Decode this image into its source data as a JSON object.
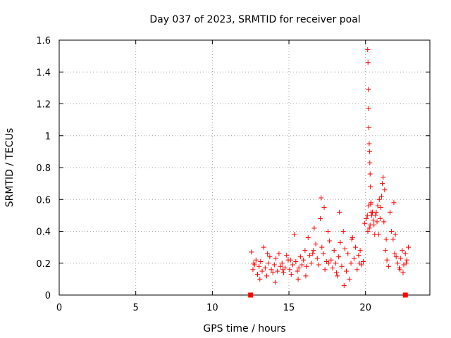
{
  "chart_data": {
    "type": "scatter",
    "title": "Day 037 of 2023, SRMTID for receiver poal",
    "xlabel": "GPS time / hours",
    "ylabel": "SRMTID / TECUs",
    "xlim": [
      0,
      24.2
    ],
    "ylim": [
      0,
      1.6
    ],
    "xticks": [
      0,
      5,
      10,
      15,
      20
    ],
    "xtick_labels": [
      "0",
      "5",
      "10",
      "15",
      "20"
    ],
    "yticks": [
      0,
      0.2,
      0.4,
      0.6,
      0.8,
      1.0,
      1.2,
      1.4,
      1.6
    ],
    "ytick_labels": [
      "0",
      "0.2",
      "0.4",
      "0.6",
      "0.8",
      "1",
      "1.2",
      "1.4",
      "1.6"
    ],
    "grid": true,
    "marker": "+",
    "color": "#ff0000",
    "series": [
      {
        "name": "SRMTID",
        "x": [
          12.55,
          12.65,
          12.75,
          12.85,
          12.95,
          13.05,
          13.15,
          13.25,
          13.35,
          13.45,
          13.55,
          13.65,
          13.75,
          13.85,
          13.95,
          14.05,
          14.15,
          14.25,
          14.35,
          14.45,
          14.55,
          14.65,
          14.75,
          14.85,
          14.95,
          15.05,
          15.15,
          15.25,
          15.35,
          15.45,
          15.55,
          15.65,
          15.75,
          15.85,
          15.95,
          16.05,
          16.15,
          16.25,
          16.35,
          16.45,
          16.55,
          16.65,
          16.75,
          16.85,
          16.95,
          17.05,
          17.15,
          17.25,
          17.35,
          17.45,
          17.55,
          17.65,
          17.75,
          17.85,
          17.95,
          18.05,
          18.15,
          18.25,
          18.35,
          18.45,
          18.55,
          18.65,
          18.75,
          18.85,
          18.95,
          19.05,
          19.15,
          19.25,
          19.35,
          19.45,
          19.55,
          19.65,
          19.75,
          19.85,
          19.95,
          20.05,
          20.12,
          20.2,
          20.3,
          20.4,
          20.5,
          20.6,
          20.7,
          20.8,
          20.9,
          21.0,
          21.1,
          21.2,
          21.3,
          21.4,
          21.5,
          21.6,
          21.7,
          21.8,
          21.9,
          22.0,
          22.1,
          22.2,
          22.3,
          22.4,
          22.5,
          22.6,
          22.7,
          22.8,
          12.7,
          13.1,
          13.6,
          14.1,
          14.6,
          15.1,
          15.6,
          16.1,
          16.6,
          17.1,
          17.3,
          17.6,
          18.1,
          18.3,
          18.6,
          19.1,
          19.6,
          20.15,
          20.25,
          20.35,
          20.45,
          20.55,
          20.65,
          20.75,
          20.85,
          20.95,
          21.05,
          21.15,
          21.25,
          21.35,
          21.85,
          21.95,
          22.25,
          22.45,
          22.65,
          20.14,
          20.16,
          20.18,
          20.2,
          20.22,
          20.24,
          20.26,
          20.28,
          20.3,
          20.32,
          20.34,
          20.36,
          12.5,
          22.6
        ],
        "y": [
          0.27,
          0.16,
          0.19,
          0.22,
          0.13,
          0.18,
          0.21,
          0.15,
          0.3,
          0.17,
          0.12,
          0.2,
          0.24,
          0.16,
          0.14,
          0.19,
          0.23,
          0.15,
          0.26,
          0.18,
          0.2,
          0.14,
          0.17,
          0.25,
          0.22,
          0.16,
          0.13,
          0.19,
          0.38,
          0.21,
          0.15,
          0.17,
          0.24,
          0.19,
          0.22,
          0.28,
          0.18,
          0.36,
          0.25,
          0.2,
          0.26,
          0.42,
          0.32,
          0.23,
          0.19,
          0.48,
          0.3,
          0.26,
          0.16,
          0.21,
          0.4,
          0.34,
          0.22,
          0.17,
          0.28,
          0.2,
          0.12,
          0.24,
          0.33,
          0.18,
          0.4,
          0.29,
          0.15,
          0.26,
          0.1,
          0.2,
          0.36,
          0.23,
          0.3,
          0.16,
          0.25,
          0.28,
          0.19,
          0.21,
          0.45,
          0.48,
          0.5,
          0.56,
          0.44,
          0.5,
          0.47,
          0.38,
          0.52,
          0.56,
          0.6,
          0.55,
          0.7,
          0.46,
          0.28,
          0.22,
          0.18,
          0.52,
          0.4,
          0.35,
          0.26,
          0.24,
          0.2,
          0.17,
          0.23,
          0.28,
          0.19,
          0.26,
          0.22,
          0.3,
          0.2,
          0.1,
          0.26,
          0.08,
          0.16,
          0.22,
          0.1,
          0.12,
          0.28,
          0.61,
          0.55,
          0.2,
          0.14,
          0.52,
          0.06,
          0.35,
          0.2,
          0.4,
          0.42,
          0.58,
          0.52,
          0.44,
          0.5,
          0.46,
          0.38,
          0.48,
          0.62,
          0.74,
          0.66,
          0.35,
          0.58,
          0.38,
          0.16,
          0.14,
          0.2,
          1.54,
          1.46,
          1.29,
          1.17,
          1.05,
          0.95,
          0.9,
          0.83,
          0.76,
          0.68,
          0.57,
          0.52,
          0.0,
          0.0
        ]
      }
    ]
  }
}
